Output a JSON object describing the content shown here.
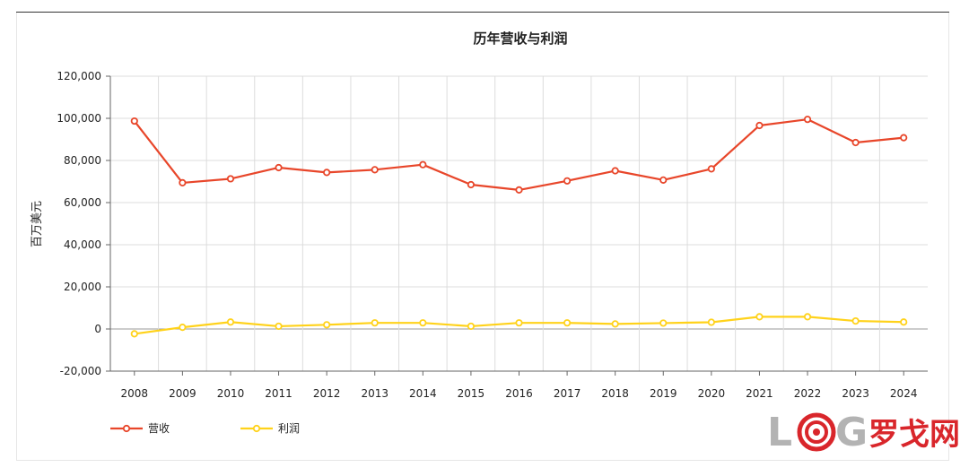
{
  "chart_data": {
    "type": "line",
    "title": "历年营收与利润",
    "ylabel": "百万美元",
    "xlabel": "",
    "ylim": [
      -20000,
      120000
    ],
    "yticks": [
      -20000,
      0,
      20000,
      40000,
      60000,
      80000,
      100000,
      120000
    ],
    "ytick_labels": [
      "-20,000",
      "0",
      "20,000",
      "40,000",
      "60,000",
      "80,000",
      "100,000",
      "120,000"
    ],
    "categories": [
      "2008",
      "2009",
      "2010",
      "2011",
      "2012",
      "2013",
      "2014",
      "2015",
      "2016",
      "2017",
      "2018",
      "2019",
      "2020",
      "2021",
      "2022",
      "2023",
      "2024"
    ],
    "series": [
      {
        "name": "营收",
        "color": "#e8462a",
        "values": [
          98700,
          69400,
          71300,
          76600,
          74300,
          75600,
          78000,
          68500,
          66000,
          70300,
          75100,
          70700,
          76000,
          96600,
          99500,
          88500,
          90800
        ]
      },
      {
        "name": "利润",
        "color": "#ffd21a",
        "values": [
          -2300,
          800,
          3300,
          1300,
          2000,
          2900,
          2900,
          1300,
          2900,
          2900,
          2400,
          2800,
          3200,
          5800,
          5800,
          3800,
          3300
        ]
      }
    ],
    "grid": true,
    "legend": "bottom-left"
  },
  "watermark": {
    "letters_l": "L",
    "letters_g": "G",
    "text": "罗戈网",
    "colors": {
      "gray": "#b3b3b3",
      "red": "#d9262b"
    }
  }
}
